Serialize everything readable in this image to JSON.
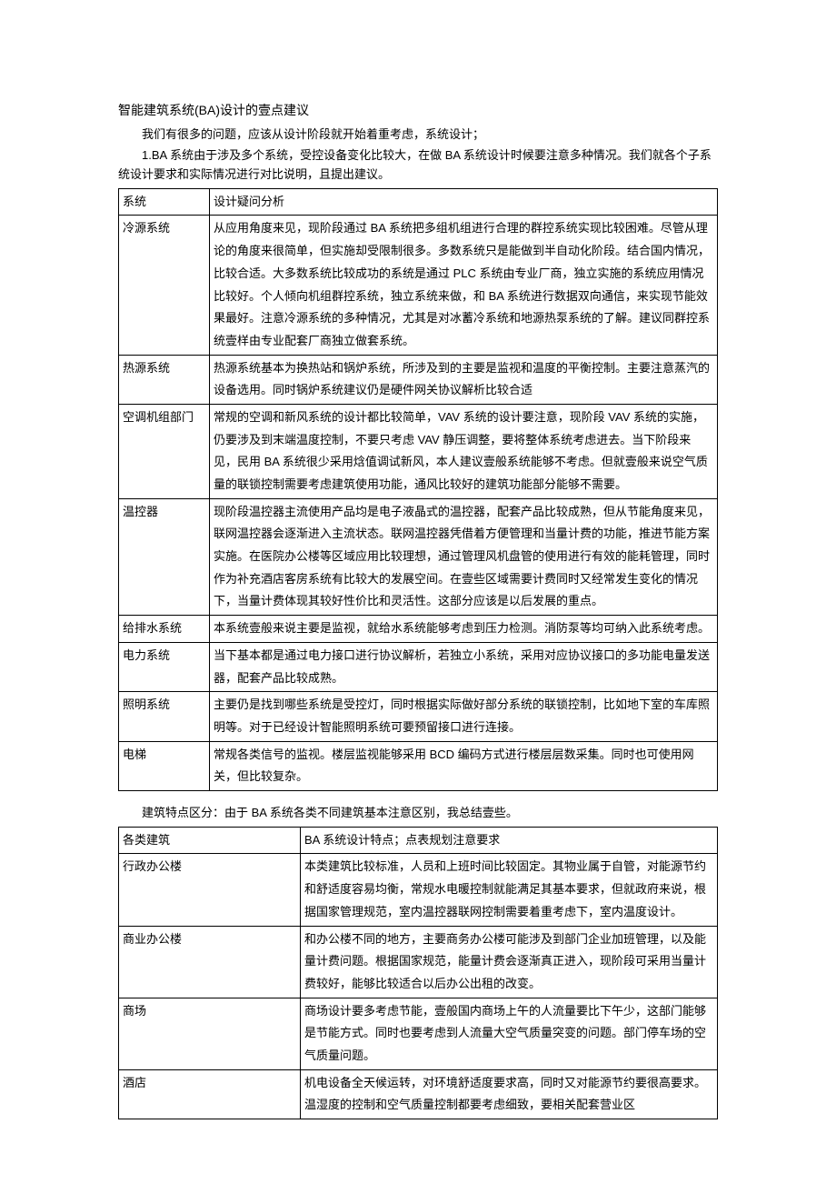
{
  "title": "智能建筑系统(BA)设计的壹点建议",
  "para1": "我们有很多的问题，应该从设计阶段就开始着重考虑，系统设计；",
  "para2": "1.BA 系统由于涉及多个系统，受控设备变化比较大，在做 BA 系统设计时候要注意多种情况。我们就各个子系统设计要求和实际情况进行对比说明，且提出建议。",
  "table1": {
    "header": {
      "c1": "系统",
      "c2": "设计疑问分析"
    },
    "rows": [
      {
        "c1": "冷源系统",
        "c2": "从应用角度来见，现阶段通过 BA 系统把多组机组进行合理的群控系统实现比较困难。尽管从理论的角度来很简单，但实施却受限制很多。多数系统只是能做到半自动化阶段。结合国内情况，比较合适。大多数系统比较成功的系统是通过 PLC 系统由专业厂商，独立实施的系统应用情况比较好。个人倾向机组群控系统，独立系统来做，和 BA 系统进行数据双向通信，来实现节能效果最好。注意冷源系统的多种情况，尤其是对冰蓄冷系统和地源热泵系统的了解。建议同群控系统壹样由专业配套厂商独立做套系统。"
      },
      {
        "c1": "热源系统",
        "c2": "热源系统基本为换热站和锅炉系统，所涉及到的主要是监视和温度的平衡控制。主要注意蒸汽的设备选用。同时锅炉系统建议仍是硬件网关协议解析比较合适"
      },
      {
        "c1": "空调机组部门",
        "c2": "常规的空调和新风系统的设计都比较简单，VAV 系统的设计要注意，现阶段 VAV 系统的实施，仍要涉及到末端温度控制，不要只考虑 VAV 静压调整，要将整体系统考虑进去。当下阶段来见，民用 BA 系统很少采用焓值调试新风，本人建议壹般系统能够不考虑。但就壹般来说空气质量的联锁控制需要考虑建筑使用功能，通风比较好的建筑功能部分能够不需要。"
      },
      {
        "c1": "温控器",
        "c2": "现阶段温控器主流使用产品均是电子液晶式的温控器，配套产品比较成熟，但从节能角度来见，联网温控器会逐渐进入主流状态。联网温控器凭借着方便管理和当量计费的功能，推进节能方案实施。在医院办公楼等区域应用比较理想，通过管理风机盘管的使用进行有效的能耗管理，同时作为补充酒店客房系统有比较大的发展空间。在壹些区域需要计费同时又经常发生变化的情况下，当量计费体现其较好性价比和灵活性。这部分应该是以后发展的重点。"
      },
      {
        "c1": "给排水系统",
        "c2": "本系统壹般来说主要是监视，就给水系统能够考虑到压力检测。消防泵等均可纳入此系统考虑。"
      },
      {
        "c1": "电力系统",
        "c2": "当下基本都是通过电力接口进行协议解析，若独立小系统，采用对应协议接口的多功能电量发送器，配套产品比较成熟。"
      },
      {
        "c1": "照明系统",
        "c2": "主要仍是找到哪些系统是受控灯，同时根据实际做好部分系统的联锁控制，比如地下室的车库照明等。对于已经设计智能照明系统可要预留接口进行连接。"
      },
      {
        "c1": "电梯",
        "c2": "常规各类信号的监视。楼层监视能够采用 BCD 编码方式进行楼层层数采集。同时也可使用网关，但比较复杂。"
      }
    ]
  },
  "para3": "建筑特点区分：由于 BA 系统各类不同建筑基本注意区别，我总结壹些。",
  "table2": {
    "header": {
      "c1": "各类建筑",
      "c2": "BA 系统设计特点；点表规划注意要求"
    },
    "rows": [
      {
        "c1": "行政办公楼",
        "c2": "本类建筑比较标准，人员和上班时间比较固定。其物业属于自管，对能源节约和舒适度容易均衡，常规水电暖控制就能满足其基本要求，但就政府来说，根据国家管理规范，室内温控器联网控制需要着重考虑下，室内温度设计。"
      },
      {
        "c1": "商业办公楼",
        "c2": "和办公楼不同的地方，主要商务办公楼可能涉及到部门企业加班管理，以及能量计费问题。根据国家规范，能量计费会逐渐真正进入，现阶段可采用当量计费较好，能够比较适合以后办公出租的改变。"
      },
      {
        "c1": "商场",
        "c2": "商场设计要多考虑节能，壹般国内商场上午的人流量要比下午少，这部门能够是节能方式。同时也要考虑到人流量大空气质量突变的问题。部门停车场的空气质量问题。"
      },
      {
        "c1": "酒店",
        "c2": "机电设备全天候运转，对环境舒适度要求高，同时又对能源节约要很高要求。温湿度的控制和空气质量控制都要考虑细致，要相关配套营业区"
      }
    ]
  }
}
